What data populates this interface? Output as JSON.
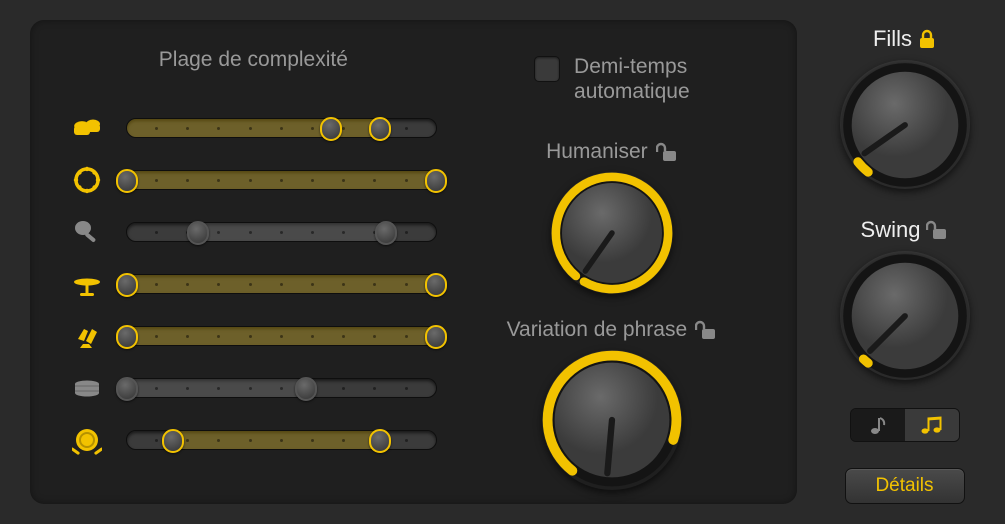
{
  "colors": {
    "accent": "#f2c200",
    "accent_dim": "#8a6e0a",
    "knob_face": "#555555",
    "knob_face_dark": "#444444",
    "track_bg": "#3b3b3b",
    "panel_bg": "#1f1f1f",
    "body_bg": "#2a2a2a",
    "text_dim": "#999999",
    "text_light": "#eeeeee",
    "handle_gray": "#555555"
  },
  "left": {
    "title": "Plage de complexité",
    "instruments": [
      {
        "icon": "bongos",
        "accent": true,
        "lo": 66,
        "hi": 82,
        "fill_lo": 0,
        "fill_hi": 82
      },
      {
        "icon": "tambourine",
        "accent": true,
        "lo": 0,
        "hi": 100,
        "fill_lo": 0,
        "fill_hi": 100
      },
      {
        "icon": "shaker",
        "accent": false,
        "lo": 23,
        "hi": 84,
        "fill_lo": 23,
        "fill_hi": 84
      },
      {
        "icon": "cymbal",
        "accent": true,
        "lo": 0,
        "hi": 100,
        "fill_lo": 0,
        "fill_hi": 100
      },
      {
        "icon": "clap",
        "accent": true,
        "lo": 0,
        "hi": 100,
        "fill_lo": 0,
        "fill_hi": 100
      },
      {
        "icon": "snare",
        "accent": false,
        "lo": 0,
        "hi": 58,
        "fill_lo": 0,
        "fill_hi": 58
      },
      {
        "icon": "kick",
        "accent": true,
        "lo": 15,
        "hi": 82,
        "fill_lo": 15,
        "fill_hi": 82
      }
    ],
    "checkbox_label_l1": "Demi-temps",
    "checkbox_label_l2": "automatique",
    "checkbox_checked": false,
    "humanize": {
      "label": "Humaniser",
      "locked": false,
      "value_deg": 215,
      "arc_start_deg": 220,
      "arc_end_deg": 210,
      "size": 122
    },
    "variation": {
      "label": "Variation de phrase",
      "locked": false,
      "value_deg": 185,
      "arc_start_deg": 218,
      "arc_end_deg": 108,
      "size": 140
    }
  },
  "right": {
    "fills": {
      "label": "Fills",
      "locked": true,
      "value_deg": 235,
      "arc_start_deg": 218,
      "arc_end_deg": 232,
      "size": 130
    },
    "swing": {
      "label": "Swing",
      "locked": false,
      "value_deg": 225,
      "arc_start_deg": 218,
      "arc_end_deg": 224,
      "size": 130
    },
    "swing_mode_active": 1,
    "details_label": "Détails"
  }
}
